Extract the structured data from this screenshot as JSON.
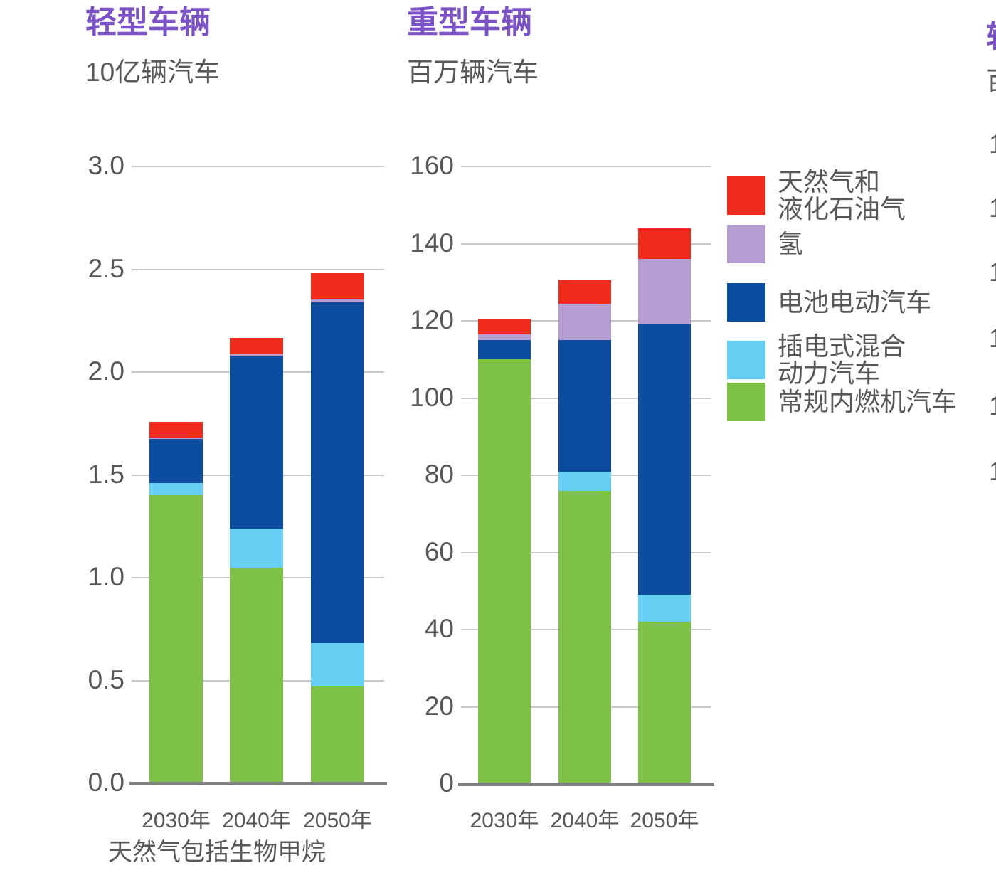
{
  "figure": {
    "background": "#ffffff"
  },
  "colors": {
    "title": "#7b52c6",
    "axis_text": "#58585a",
    "gridline": "#c9c9ca",
    "baseline": "#7e7f81",
    "ng_lpg": "#ef2b1c",
    "hydrogen": "#b69dd1",
    "bev": "#0d4da0",
    "phev": "#65d0f4",
    "ice": "#7dc146"
  },
  "legend": {
    "items": [
      {
        "key": "ng_lpg",
        "lines": [
          "天然气和",
          "液化石油气"
        ]
      },
      {
        "key": "hydrogen",
        "lines": [
          "氢"
        ]
      },
      {
        "key": "bev",
        "lines": [
          "电池电动汽车"
        ]
      },
      {
        "key": "phev",
        "lines": [
          "插电式混合",
          "动力汽车"
        ]
      },
      {
        "key": "ice",
        "lines": [
          "常规内燃机汽车"
        ]
      }
    ]
  },
  "chart_data": [
    {
      "type": "bar",
      "stacked": true,
      "title": "轻型车辆",
      "subtitle": "10亿辆汽车",
      "categories": [
        "2030年",
        "2040年",
        "2050年"
      ],
      "series": [
        {
          "name": "常规内燃机汽车",
          "key": "ice",
          "values": [
            1.4,
            1.05,
            0.47
          ]
        },
        {
          "name": "插电式混合动力汽车",
          "key": "phev",
          "values": [
            0.06,
            0.19,
            0.21
          ]
        },
        {
          "name": "电池电动汽车",
          "key": "bev",
          "values": [
            0.215,
            0.84,
            1.66
          ]
        },
        {
          "name": "氢",
          "key": "hydrogen",
          "values": [
            0.007,
            0.007,
            0.012
          ]
        },
        {
          "name": "天然气和液化石油气",
          "key": "ng_lpg",
          "values": [
            0.075,
            0.08,
            0.13
          ]
        }
      ],
      "totals": [
        1.76,
        2.17,
        2.48
      ],
      "ylim": [
        0,
        3.0
      ],
      "y_ticks": [
        "3.0",
        "2.5",
        "2.0",
        "1.5",
        "1.0",
        "0.5",
        "0.0"
      ],
      "grid": true,
      "legend_position": "right",
      "footnote": "天然气包括生物甲烷"
    },
    {
      "type": "bar",
      "stacked": true,
      "title": "重型车辆",
      "subtitle": "百万辆汽车",
      "categories": [
        "2030年",
        "2040年",
        "2050年"
      ],
      "series": [
        {
          "name": "常规内燃机汽车",
          "key": "ice",
          "values": [
            110,
            76,
            42
          ]
        },
        {
          "name": "插电式混合动力汽车",
          "key": "phev",
          "values": [
            0,
            5,
            7
          ]
        },
        {
          "name": "电池电动汽车",
          "key": "bev",
          "values": [
            5,
            34,
            70
          ]
        },
        {
          "name": "氢",
          "key": "hydrogen",
          "values": [
            1.5,
            9.5,
            17
          ]
        },
        {
          "name": "天然气和液化石油气",
          "key": "ng_lpg",
          "values": [
            4,
            6,
            8
          ]
        }
      ],
      "totals": [
        120.5,
        130.5,
        144
      ],
      "ylim": [
        0,
        160
      ],
      "y_ticks": [
        "160",
        "140",
        "120",
        "100",
        "80",
        "60",
        "40",
        "20",
        "0"
      ],
      "grid": true
    }
  ],
  "edge_fragments": {
    "title_char": "轻",
    "subtitle_char": "百",
    "tick_char": "1"
  }
}
